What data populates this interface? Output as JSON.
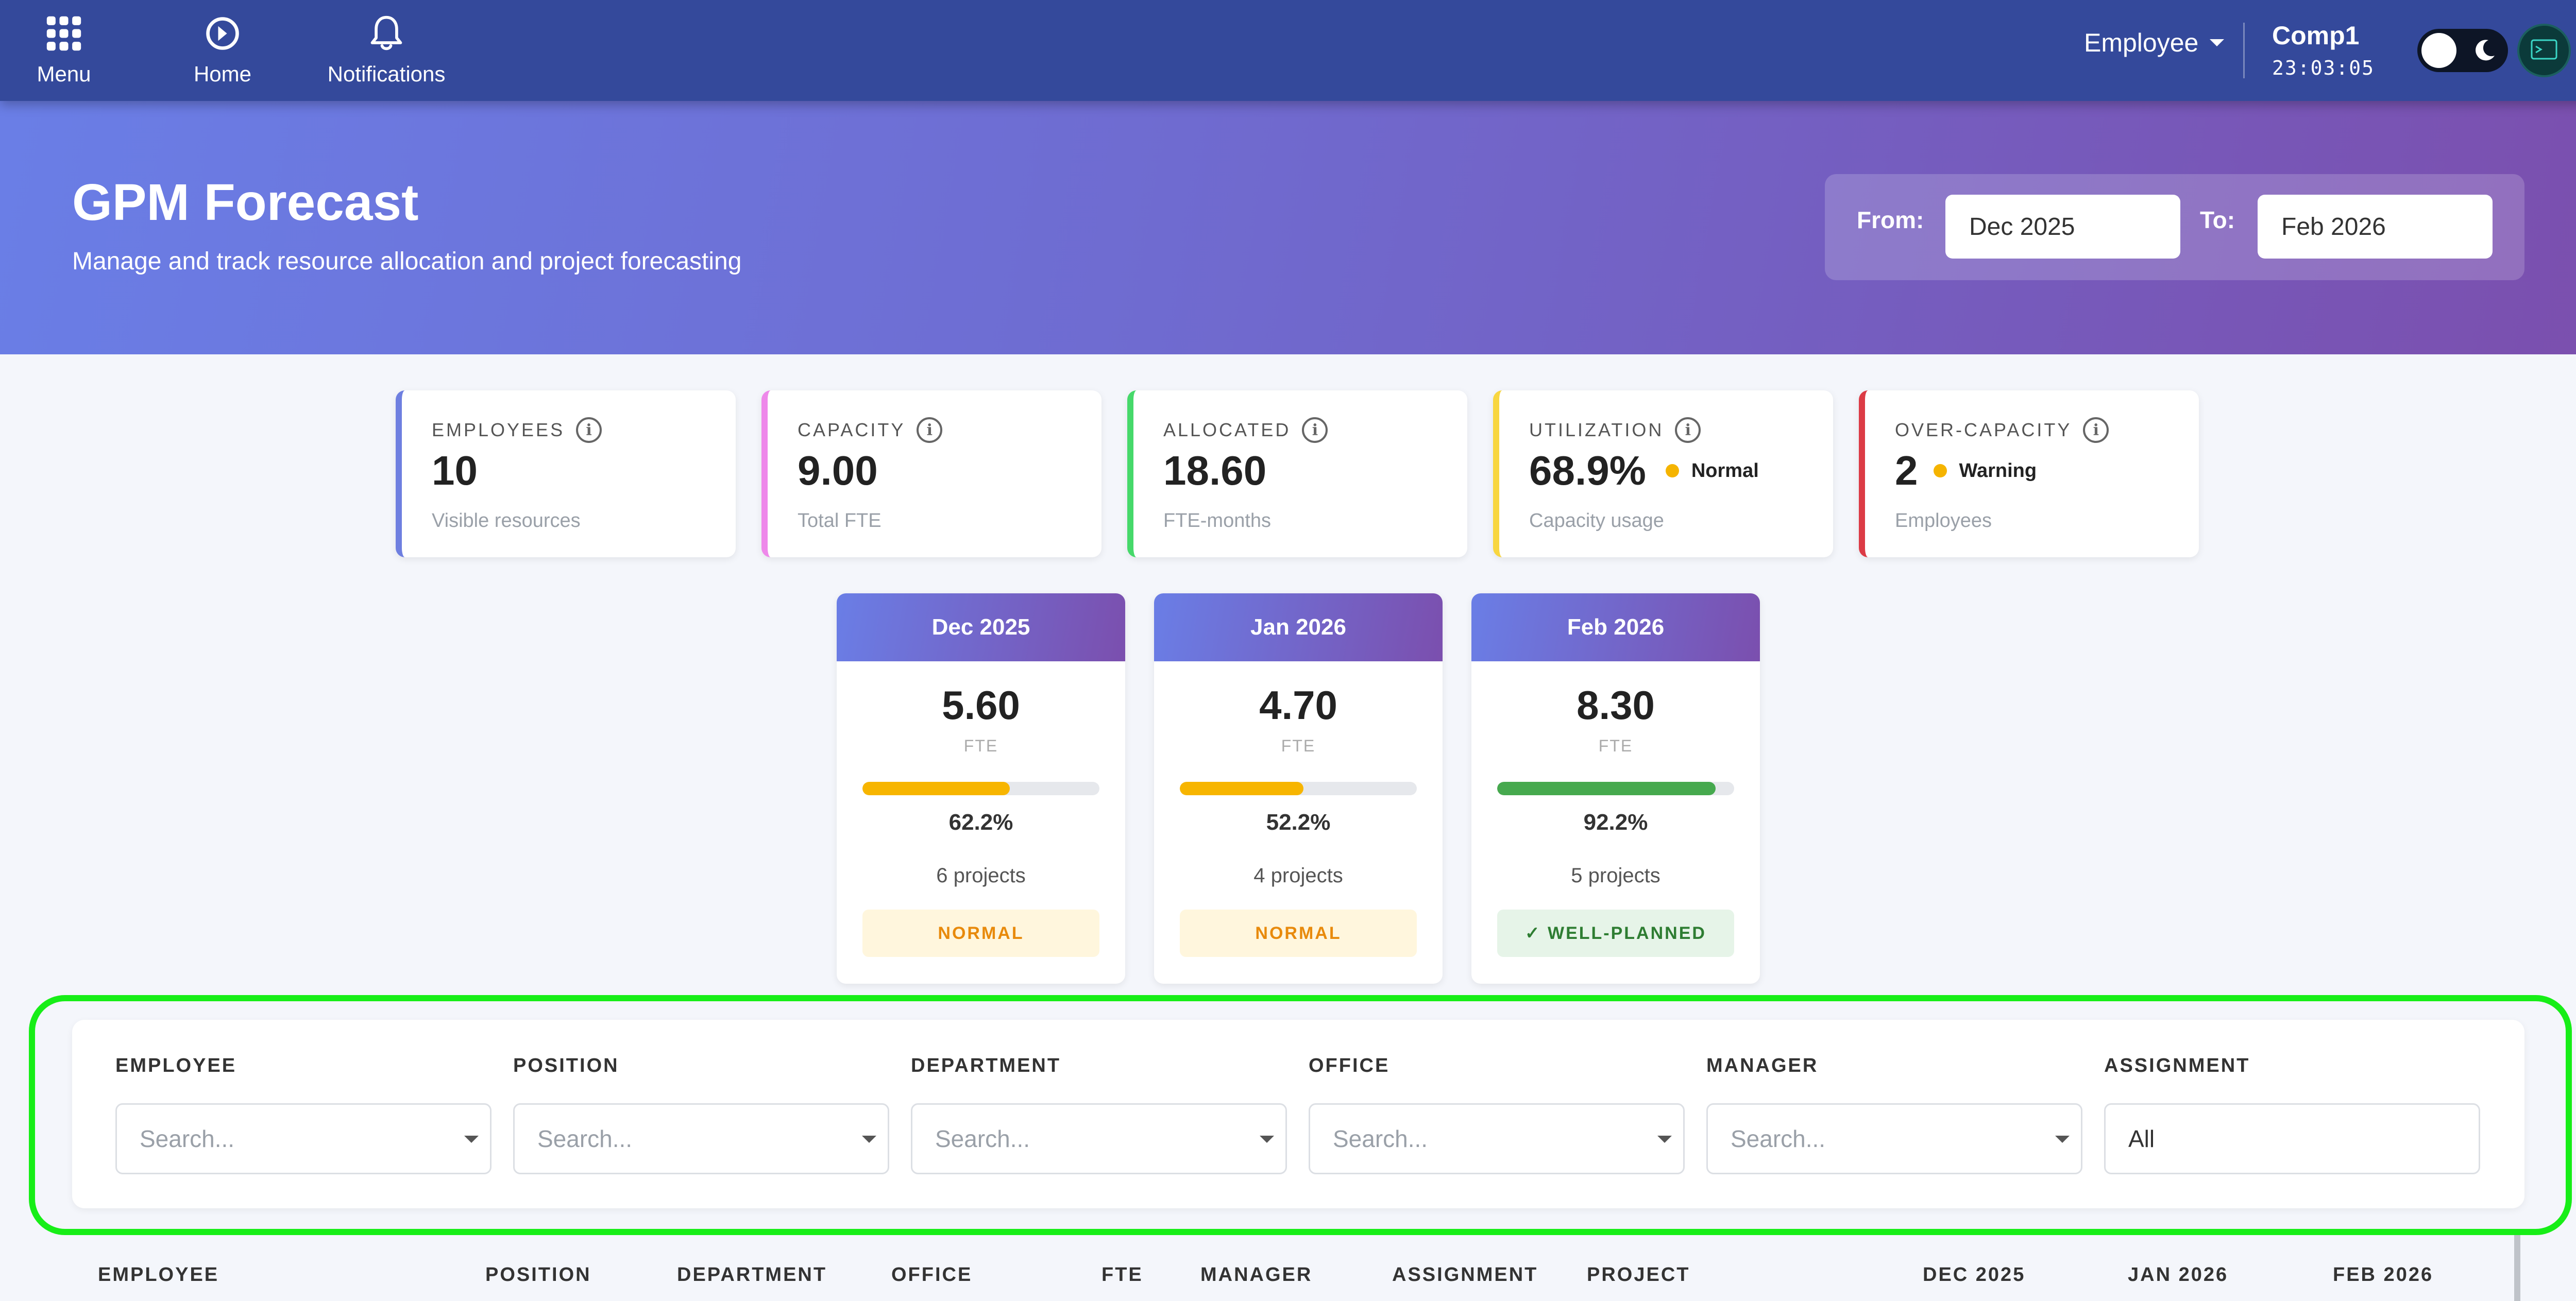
{
  "nav": {
    "menu": "Menu",
    "home": "Home",
    "notifications": "Notifications",
    "role": "Employee",
    "company": "Comp1",
    "time": "23:03:05"
  },
  "hero": {
    "title": "GPM Forecast",
    "subtitle": "Manage and track resource allocation and project forecasting",
    "from_label": "From:",
    "from_value": "Dec 2025",
    "to_label": "To:",
    "to_value": "Feb 2026"
  },
  "kpis": [
    {
      "label": "EMPLOYEES",
      "value": "10",
      "status": "",
      "sub": "Visible resources",
      "color": "#6e7fe0"
    },
    {
      "label": "CAPACITY",
      "value": "9.00",
      "status": "",
      "sub": "Total FTE",
      "color": "#ee88ea"
    },
    {
      "label": "ALLOCATED",
      "value": "18.60",
      "status": "",
      "sub": "FTE-months",
      "color": "#46d96a"
    },
    {
      "label": "UTILIZATION",
      "value": "68.9%",
      "status": "Normal",
      "sub": "Capacity usage",
      "color": "#f8d640"
    },
    {
      "label": "OVER-CAPACITY",
      "value": "2",
      "status": "Warning",
      "sub": "Employees",
      "color": "#dc3b45"
    }
  ],
  "months": [
    {
      "title": "Dec 2025",
      "fte": "5.60",
      "unit": "FTE",
      "utilization": 62.2,
      "pct": "62.2%",
      "projects": "6 projects",
      "badge": "NORMAL",
      "bar_color": "#f7b500",
      "badge_bg": "#fff6dd",
      "badge_color": "#e88a0c"
    },
    {
      "title": "Jan 2026",
      "fte": "4.70",
      "unit": "FTE",
      "utilization": 52.2,
      "pct": "52.2%",
      "projects": "4 projects",
      "badge": "NORMAL",
      "bar_color": "#f7b500",
      "badge_bg": "#fff6dd",
      "badge_color": "#e88a0c"
    },
    {
      "title": "Feb 2026",
      "fte": "8.30",
      "unit": "FTE",
      "utilization": 92.2,
      "pct": "92.2%",
      "projects": "5 projects",
      "badge": "✓  WELL-PLANNED",
      "bar_color": "#46a94e",
      "badge_bg": "#e6f4e8",
      "badge_color": "#2e7d32"
    }
  ],
  "filters": [
    {
      "label": "EMPLOYEE",
      "placeholder": "Search..."
    },
    {
      "label": "POSITION",
      "placeholder": "Search..."
    },
    {
      "label": "DEPARTMENT",
      "placeholder": "Search..."
    },
    {
      "label": "OFFICE",
      "placeholder": "Search..."
    },
    {
      "label": "MANAGER",
      "placeholder": "Search..."
    },
    {
      "label": "ASSIGNMENT",
      "value": "All"
    }
  ],
  "table_headers": [
    "EMPLOYEE",
    "POSITION",
    "DEPARTMENT",
    "OFFICE",
    "FTE",
    "MANAGER",
    "ASSIGNMENT",
    "PROJECT",
    "DEC 2025",
    "JAN 2026",
    "FEB 2026"
  ]
}
